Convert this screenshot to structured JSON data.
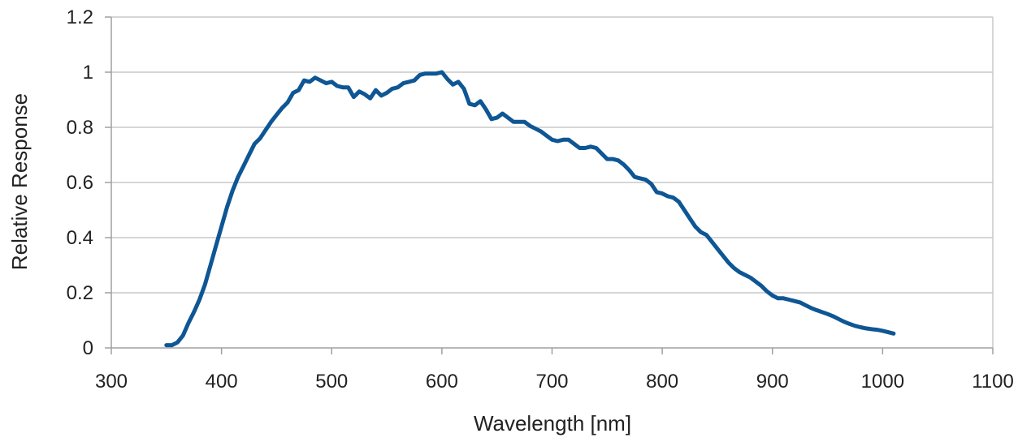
{
  "chart_data": {
    "type": "line",
    "title": "",
    "xlabel": "Wavelength [nm]",
    "ylabel": "Relative Response",
    "xlim": [
      300,
      1100
    ],
    "ylim": [
      0,
      1.2
    ],
    "x_ticks": [
      300,
      400,
      500,
      600,
      700,
      800,
      900,
      1000,
      1100
    ],
    "y_ticks": [
      0,
      0.2,
      0.4,
      0.6,
      0.8,
      1,
      1.2
    ],
    "x_tick_labels": [
      "300",
      "400",
      "500",
      "600",
      "700",
      "800",
      "900",
      "1000",
      "1100"
    ],
    "y_tick_labels": [
      "0",
      "0.2",
      "0.4",
      "0.6",
      "0.8",
      "1",
      "1.2"
    ],
    "grid": "horizontal",
    "legend": "none",
    "colors": {
      "series": "#0e5694",
      "grid": "#c8c8c8",
      "axis": "#a0a0a0"
    },
    "series": [
      {
        "x": [
          350,
          355,
          360,
          365,
          370,
          375,
          380,
          385,
          390,
          395,
          400,
          405,
          410,
          415,
          420,
          425,
          430,
          435,
          440,
          445,
          450,
          455,
          460,
          465,
          470,
          475,
          480,
          485,
          490,
          495,
          500,
          505,
          510,
          515,
          520,
          525,
          530,
          535,
          540,
          545,
          550,
          555,
          560,
          565,
          570,
          575,
          580,
          585,
          590,
          595,
          600,
          605,
          610,
          615,
          620,
          625,
          630,
          635,
          640,
          645,
          650,
          655,
          660,
          665,
          670,
          675,
          680,
          685,
          690,
          695,
          700,
          705,
          710,
          715,
          720,
          725,
          730,
          735,
          740,
          745,
          750,
          755,
          760,
          765,
          770,
          775,
          780,
          785,
          790,
          795,
          800,
          805,
          810,
          815,
          820,
          825,
          830,
          835,
          840,
          845,
          850,
          855,
          860,
          865,
          870,
          875,
          880,
          885,
          890,
          895,
          900,
          905,
          910,
          915,
          920,
          925,
          930,
          935,
          940,
          945,
          950,
          955,
          960,
          965,
          970,
          975,
          980,
          985,
          990,
          995,
          1000,
          1005,
          1010
        ],
        "y": [
          0.01,
          0.01,
          0.02,
          0.045,
          0.09,
          0.13,
          0.175,
          0.23,
          0.3,
          0.37,
          0.44,
          0.51,
          0.57,
          0.62,
          0.66,
          0.7,
          0.74,
          0.76,
          0.79,
          0.82,
          0.845,
          0.87,
          0.89,
          0.925,
          0.935,
          0.97,
          0.965,
          0.98,
          0.97,
          0.96,
          0.965,
          0.95,
          0.945,
          0.945,
          0.91,
          0.93,
          0.92,
          0.905,
          0.935,
          0.915,
          0.925,
          0.94,
          0.945,
          0.96,
          0.965,
          0.97,
          0.99,
          0.995,
          0.995,
          0.995,
          1.0,
          0.975,
          0.955,
          0.965,
          0.94,
          0.885,
          0.88,
          0.895,
          0.865,
          0.83,
          0.835,
          0.85,
          0.835,
          0.82,
          0.82,
          0.82,
          0.805,
          0.795,
          0.785,
          0.77,
          0.755,
          0.75,
          0.755,
          0.755,
          0.74,
          0.725,
          0.725,
          0.73,
          0.725,
          0.705,
          0.685,
          0.685,
          0.68,
          0.665,
          0.645,
          0.62,
          0.615,
          0.61,
          0.595,
          0.565,
          0.56,
          0.55,
          0.545,
          0.53,
          0.5,
          0.47,
          0.44,
          0.42,
          0.41,
          0.385,
          0.36,
          0.335,
          0.31,
          0.29,
          0.275,
          0.265,
          0.255,
          0.24,
          0.225,
          0.205,
          0.19,
          0.18,
          0.18,
          0.175,
          0.17,
          0.165,
          0.155,
          0.145,
          0.137,
          0.13,
          0.123,
          0.115,
          0.105,
          0.095,
          0.087,
          0.08,
          0.075,
          0.071,
          0.068,
          0.066,
          0.062,
          0.057,
          0.052
        ]
      }
    ]
  }
}
